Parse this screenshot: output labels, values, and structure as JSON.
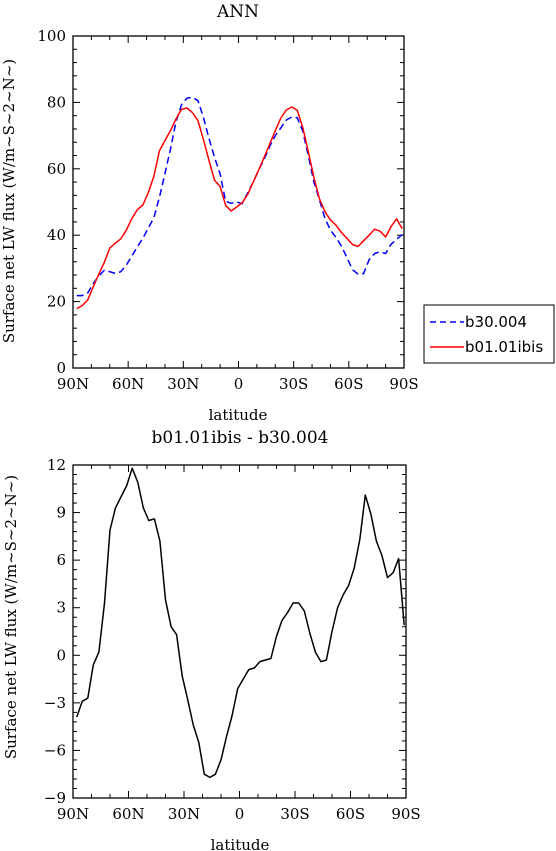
{
  "chart_data": [
    {
      "type": "line",
      "title": "ANN",
      "xlabel": "latitude",
      "ylabel": "Surface net LW flux (W/m~S~2~N~)",
      "xlim": [
        90,
        -90
      ],
      "ylim": [
        0,
        100
      ],
      "x_ticks": [
        90,
        60,
        30,
        0,
        -30,
        -60,
        -90
      ],
      "x_tick_labels": [
        "90N",
        "60N",
        "30N",
        "0",
        "30S",
        "60S",
        "90S"
      ],
      "y_ticks": [
        0,
        20,
        40,
        60,
        80,
        100
      ],
      "y_tick_labels": [
        "0",
        "20",
        "40",
        "60",
        "80",
        "100"
      ],
      "legend_position": "right",
      "series": [
        {
          "name": "b30.004",
          "color": "#0000ff",
          "dash": "dashed",
          "x": [
            88,
            85,
            82,
            79,
            76,
            73,
            70,
            67,
            64,
            61,
            58,
            55,
            52,
            49,
            46,
            43,
            40,
            37,
            34,
            31,
            28,
            25,
            22,
            19,
            16,
            13,
            10,
            7,
            4,
            1,
            -2,
            -5,
            -8,
            -11,
            -14,
            -17,
            -20,
            -23,
            -26,
            -29,
            -32,
            -35,
            -38,
            -41,
            -44,
            -47,
            -50,
            -53,
            -56,
            -59,
            -62,
            -65,
            -68,
            -71,
            -74,
            -77,
            -80,
            -83,
            -86,
            -89
          ],
          "y": [
            21.8,
            21.8,
            22.6,
            25.4,
            27.7,
            29.4,
            29.0,
            28.5,
            29.0,
            31.0,
            33.7,
            36.5,
            39.1,
            42.2,
            45.3,
            51.4,
            58.5,
            66.0,
            74.2,
            79.3,
            81.3,
            81.5,
            80.5,
            75.3,
            69.0,
            63.4,
            58.5,
            50.2,
            49.6,
            50.0,
            49.5,
            52.8,
            56.0,
            59.6,
            62.9,
            66.8,
            70.0,
            72.3,
            74.7,
            75.6,
            75.4,
            71.2,
            63.8,
            56.0,
            50.7,
            45.1,
            41.6,
            39.3,
            36.7,
            33.2,
            29.6,
            28.3,
            28.4,
            32.6,
            34.5,
            35.0,
            34.5,
            37.3,
            38.7,
            40.2
          ]
        },
        {
          "name": "b01.01ibis",
          "color": "#ff0000",
          "dash": "solid",
          "x": [
            88,
            85,
            82,
            79,
            76,
            73,
            70,
            67,
            64,
            61,
            58,
            55,
            52,
            49,
            46,
            43,
            40,
            37,
            34,
            31,
            28,
            25,
            22,
            19,
            16,
            13,
            10,
            7,
            4,
            1,
            -2,
            -5,
            -8,
            -11,
            -14,
            -17,
            -20,
            -23,
            -26,
            -29,
            -32,
            -35,
            -38,
            -41,
            -44,
            -47,
            -50,
            -53,
            -56,
            -59,
            -62,
            -65,
            -68,
            -71,
            -74,
            -77,
            -80,
            -83,
            -86,
            -89
          ],
          "y": [
            17.9,
            18.8,
            20.5,
            24.4,
            28.2,
            31.8,
            36.1,
            37.6,
            38.9,
            41.5,
            45.0,
            47.7,
            49.1,
            52.9,
            57.8,
            65.4,
            68.5,
            71.5,
            75.0,
            77.9,
            78.3,
            76.9,
            74.5,
            68.6,
            62.4,
            56.5,
            54.7,
            49.0,
            47.3,
            48.5,
            49.8,
            52.3,
            56.0,
            59.6,
            63.5,
            67.5,
            71.5,
            75.3,
            77.7,
            78.6,
            77.6,
            72.3,
            65.0,
            57.4,
            51.0,
            47.1,
            44.6,
            43.0,
            40.8,
            39.0,
            37.2,
            36.6,
            38.3,
            40.0,
            41.8,
            41.2,
            39.5,
            42.6,
            44.9,
            42.0
          ]
        }
      ]
    },
    {
      "type": "line",
      "title": "b01.01ibis - b30.004",
      "xlabel": "latitude",
      "ylabel": "Surface net LW flux (W/m~S~2~N~)",
      "xlim": [
        90,
        -90
      ],
      "ylim": [
        -9,
        12
      ],
      "x_ticks": [
        90,
        60,
        30,
        0,
        -30,
        -60,
        -90
      ],
      "x_tick_labels": [
        "90N",
        "60N",
        "30N",
        "0",
        "30S",
        "60S",
        "90S"
      ],
      "y_ticks": [
        -9,
        -6,
        -3,
        0,
        3,
        6,
        9,
        12
      ],
      "y_tick_labels": [
        "−9",
        "−6",
        "−3",
        "0",
        "3",
        "6",
        "9",
        "12"
      ],
      "series": [
        {
          "color": "#000000",
          "dash": "solid",
          "x": [
            88,
            85,
            82,
            79,
            76,
            73,
            70,
            67,
            64,
            61,
            58,
            55,
            52,
            49,
            46,
            43,
            40,
            37,
            34,
            31,
            28,
            25,
            22,
            19,
            16,
            13,
            10,
            7,
            4,
            1,
            -2,
            -5,
            -8,
            -11,
            -14,
            -17,
            -20,
            -23,
            -26,
            -29,
            -32,
            -35,
            -38,
            -41,
            -44,
            -47,
            -50,
            -53,
            -56,
            -59,
            -62,
            -65,
            -68,
            -71,
            -74,
            -77,
            -80,
            -83,
            -86,
            -89
          ],
          "y": [
            -3.9,
            -2.9,
            -2.7,
            -0.6,
            0.2,
            3.3,
            7.9,
            9.3,
            10.0,
            10.7,
            11.8,
            10.9,
            9.3,
            8.5,
            8.6,
            7.2,
            3.5,
            1.8,
            1.3,
            -1.3,
            -2.8,
            -4.4,
            -5.5,
            -7.5,
            -7.7,
            -7.5,
            -6.6,
            -5.1,
            -3.8,
            -2.1,
            -1.5,
            -0.9,
            -0.8,
            -0.4,
            -0.3,
            -0.2,
            1.2,
            2.2,
            2.7,
            3.3,
            3.3,
            2.8,
            1.4,
            0.2,
            -0.4,
            -0.3,
            1.5,
            3.0,
            3.8,
            4.4,
            5.5,
            7.3,
            10.1,
            8.9,
            7.2,
            6.3,
            4.9,
            5.2,
            6.1,
            1.9
          ]
        }
      ]
    }
  ]
}
